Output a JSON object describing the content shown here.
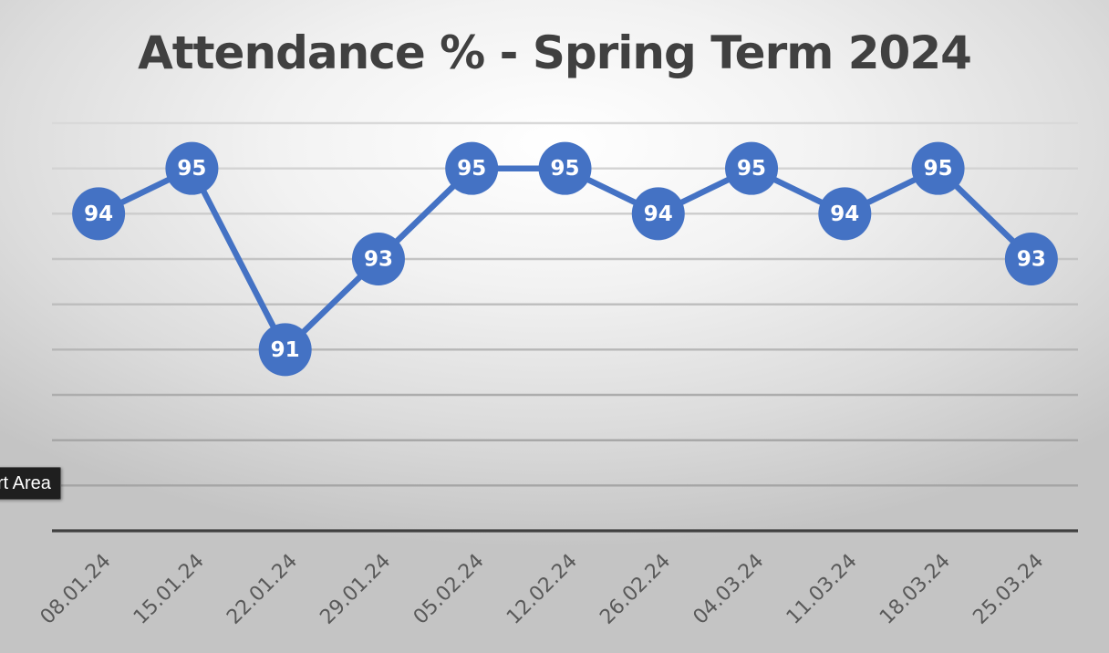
{
  "chart_data": {
    "type": "line",
    "title": "Attendance % - Spring Term 2024",
    "categories": [
      "08.01.24",
      "15.01.24",
      "22.01.24",
      "29.01.24",
      "05.02.24",
      "12.02.24",
      "26.02.24",
      "04.03.24",
      "11.03.24",
      "18.03.24",
      "25.03.24"
    ],
    "series": [
      {
        "values": [
          94,
          95,
          91,
          93,
          95,
          95,
          94,
          95,
          94,
          95,
          93
        ]
      }
    ],
    "xlabel": "",
    "ylabel": "",
    "ylim": [
      87,
      96
    ],
    "grid": true,
    "y_tick_labels_shown": false,
    "data_labels": true,
    "markers": "filled-circle",
    "legend": "none"
  },
  "tooltip": {
    "text": "rt Area"
  },
  "colors": {
    "series": "#4472C4",
    "title": "#404040",
    "tick_labels": "#595959",
    "baseline": "#404040"
  }
}
